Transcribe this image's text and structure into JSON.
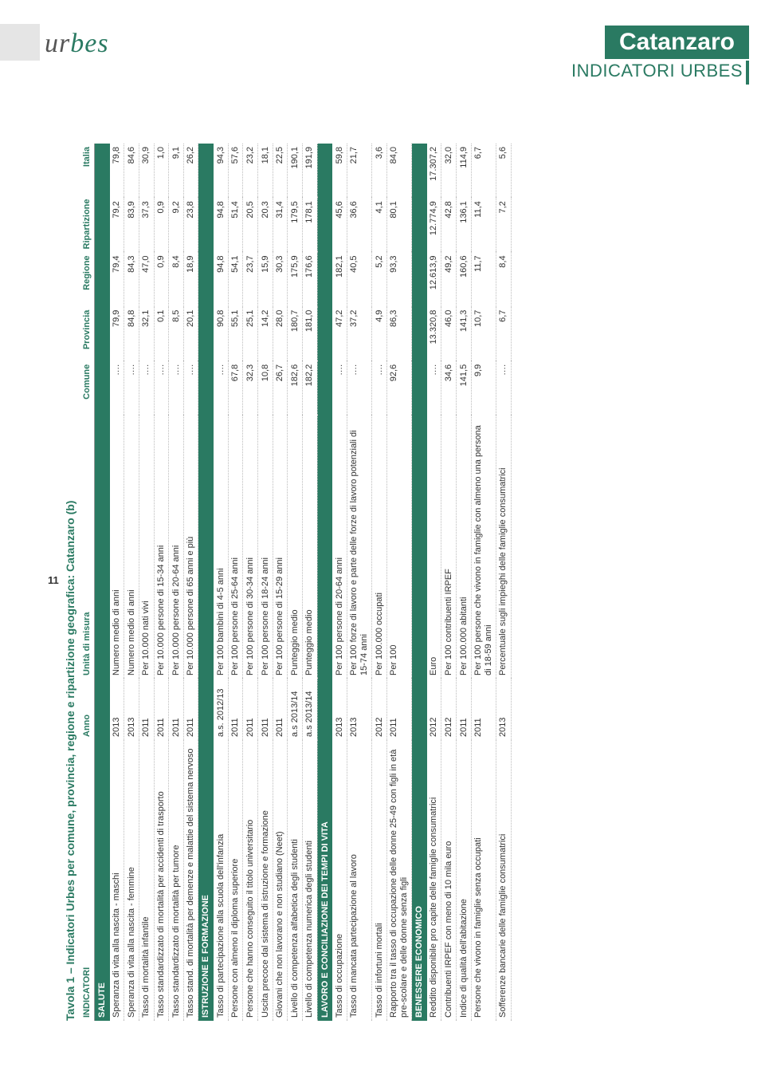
{
  "header": {
    "logo_part1": "ur",
    "logo_part2": "bes",
    "city": "Catanzaro",
    "subtitle": "INDICATORI URBES"
  },
  "table": {
    "title": "Tavola 1 – Indicatori Urbes per comune, provincia, regione e ripartizione geografica: Catanzaro (b)",
    "columns": [
      "INDICATORI",
      "Anno",
      "Unità di misura",
      "Comune",
      "Provincia",
      "Regione",
      "Ripartizione",
      "Italia"
    ],
    "colors": {
      "brand": "#2a7a62",
      "text": "#333333",
      "rule": "#bbbbbb"
    },
    "sections": [
      {
        "name": "SALUTE",
        "rows": [
          {
            "ind": "Speranza di vita alla nascita - maschi",
            "anno": "2013",
            "um": "Numero medio di anni",
            "v": [
              "….",
              "79,9",
              "79,4",
              "79,2",
              "79,8"
            ]
          },
          {
            "ind": "Speranza di vita alla nascita - femmine",
            "anno": "2013",
            "um": "Numero medio di anni",
            "v": [
              "….",
              "84,8",
              "84,3",
              "83,9",
              "84,6"
            ]
          },
          {
            "ind": "Tasso di mortalità infantile",
            "anno": "2011",
            "um": "Per 10.000 nati vivi",
            "v": [
              "….",
              "32,1",
              "47,0",
              "37,3",
              "30,9"
            ]
          },
          {
            "ind": "Tasso standardizzato di mortalità per accidenti di trasporto",
            "anno": "2011",
            "um": "Per 10.000 persone di 15-34 anni",
            "v": [
              "….",
              "0,1",
              "0,9",
              "0,9",
              "1,0"
            ]
          },
          {
            "ind": "Tasso standardizzato di mortalità per tumore",
            "anno": "2011",
            "um": "Per 10.000 persone di 20-64 anni",
            "v": [
              "….",
              "8,5",
              "8,4",
              "9,2",
              "9,1"
            ]
          },
          {
            "ind": "Tasso stand. di mortalità per demenze e malattie del sistema nervoso",
            "anno": "2011",
            "um": "Per 10.000 persone di 65 anni e più",
            "v": [
              "….",
              "20,1",
              "18,9",
              "23,8",
              "26,2"
            ]
          }
        ]
      },
      {
        "name": "ISTRUZIONE E FORMAZIONE",
        "rows": [
          {
            "ind": "Tasso di partecipazione alla scuola dell'infanzia",
            "anno": "a.s. 2012/13",
            "um": "Per 100 bambini di 4-5 anni",
            "v": [
              "….",
              "90,8",
              "94,8",
              "94,8",
              "94,3"
            ]
          },
          {
            "ind": "Persone con almeno il diploma superiore",
            "anno": "2011",
            "um": "Per 100 persone di 25-64 anni",
            "v": [
              "67,8",
              "55,1",
              "54,1",
              "51,4",
              "57,6"
            ]
          },
          {
            "ind": "Persone che hanno conseguito il titolo universitario",
            "anno": "2011",
            "um": "Per 100 persone di 30-34 anni",
            "v": [
              "32,3",
              "25,1",
              "23,7",
              "20,5",
              "23,2"
            ]
          },
          {
            "ind": "Uscita precoce dal sistema di istruzione e formazione",
            "anno": "2011",
            "um": "Per 100 persone di 18-24 anni",
            "v": [
              "10,8",
              "14,2",
              "15,9",
              "20,3",
              "18,1"
            ]
          },
          {
            "ind": "Giovani che non lavorano e non studiano (Neet)",
            "anno": "2011",
            "um": "Per 100 persone di 15-29 anni",
            "v": [
              "26,7",
              "28,0",
              "30,3",
              "31,4",
              "22,5"
            ]
          },
          {
            "ind": "Livello di competenza alfabetica degli studenti",
            "anno": "a.s 2013/14",
            "um": "Punteggio medio",
            "v": [
              "182,6",
              "180,7",
              "175,9",
              "179,5",
              "190,1"
            ]
          },
          {
            "ind": "Livello di competenza numerica degli studenti",
            "anno": "a.s 2013/14",
            "um": "Punteggio medio",
            "v": [
              "182,2",
              "181,0",
              "176,6",
              "178,1",
              "191,9"
            ]
          }
        ]
      },
      {
        "name": "LAVORO E CONCILIAZIONE DEI TEMPI DI VITA",
        "rows": [
          {
            "ind": "Tasso di occupazione",
            "anno": "2013",
            "um": "Per 100 persone di 20-64 anni",
            "v": [
              "….",
              "47,2",
              "182,1",
              "45,6",
              "59,8"
            ]
          },
          {
            "ind": "Tasso di mancata partecipazione al lavoro",
            "anno": "2013",
            "um": "Per 100 forze di lavoro e parte delle forze di lavoro potenziali di 15-74 anni",
            "v": [
              "….",
              "37,2",
              "40,5",
              "36,6",
              "21,7"
            ]
          },
          {
            "ind": "Tasso di infortuni mortali",
            "anno": "2012",
            "um": "Per 100.000 occupati",
            "v": [
              "….",
              "4,9",
              "5,2",
              "4,1",
              "3,6"
            ]
          },
          {
            "ind": "Rapporto tra il tasso di occupazione delle donne 25-49 con figli in età pre-scolare e delle donne senza figli",
            "anno": "2011",
            "um": "Per 100",
            "v": [
              "92,6",
              "86,3",
              "93,3",
              "80,1",
              "84,0"
            ]
          }
        ]
      },
      {
        "name": "BENESSERE ECONOMICO",
        "rows": [
          {
            "ind": "Reddito disponibile pro capite delle famiglie consumatrici",
            "anno": "2012",
            "um": "Euro",
            "v": [
              "….",
              "13.320,8",
              "12.613,9",
              "12.774,9",
              "17.307,2"
            ]
          },
          {
            "ind": "Contribuenti IRPEF con meno di 10 mila euro",
            "anno": "2012",
            "um": "Per 100 contribuenti IRPEF",
            "v": [
              "34,6",
              "46,0",
              "49,2",
              "42,8",
              "32,0"
            ]
          },
          {
            "ind": "Indice di qualità dell'abitazione",
            "anno": "2011",
            "um": "Per 100.000 abitanti",
            "v": [
              "141,5",
              "141,3",
              "160,6",
              "136,1",
              "114,9"
            ]
          },
          {
            "ind": "Persone che vivono in famiglie senza occupati",
            "anno": "2011",
            "um": "Per 100 persone che vivono in famiglie con almeno una persona di 18-59 anni",
            "v": [
              "9,9",
              "10,7",
              "11,7",
              "11,4",
              "6,7"
            ]
          },
          {
            "ind": "Sofferenze bancarie delle famiglie consumatrici",
            "anno": "2013",
            "um": "Percentuale sugli impieghi delle famiglie consumatrici",
            "v": [
              "….",
              "6,7",
              "8,4",
              "7,2",
              "5,6"
            ]
          }
        ]
      }
    ]
  },
  "page_number": "11"
}
